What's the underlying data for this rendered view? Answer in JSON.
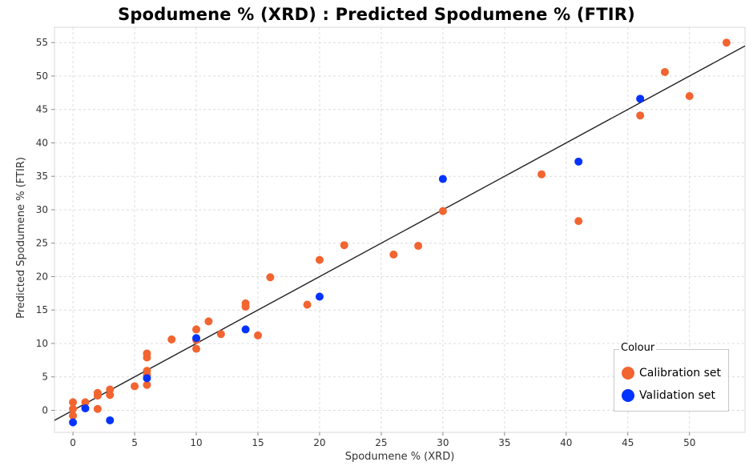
{
  "chart_data": {
    "type": "scatter",
    "title": "Spodumene % (XRD) : Predicted Spodumene % (FTIR)",
    "xlabel": "Spodumene % (XRD)",
    "ylabel": "Predicted Spodumene % (FTIR)",
    "xlim": [
      -1.5,
      54.5
    ],
    "ylim": [
      -3.3,
      57.3
    ],
    "x_ticks": [
      0,
      5,
      10,
      15,
      20,
      25,
      30,
      35,
      40,
      45,
      50
    ],
    "y_ticks": [
      0,
      5,
      10,
      15,
      20,
      25,
      30,
      35,
      40,
      45,
      50,
      55
    ],
    "grid": true,
    "legend_position": "bottom-right",
    "legend_title": "Colour",
    "fit_line": {
      "x": [
        -1.5,
        54.5
      ],
      "y": [
        -1.5,
        54.5
      ]
    },
    "series": [
      {
        "name": "Calibration set",
        "color": "#f26430",
        "points": [
          [
            0,
            1.2
          ],
          [
            0,
            0.2
          ],
          [
            0,
            -0.8
          ],
          [
            1,
            1.2
          ],
          [
            2,
            2.6
          ],
          [
            2,
            2.2
          ],
          [
            2,
            0.2
          ],
          [
            3,
            3.1
          ],
          [
            3,
            2.3
          ],
          [
            5,
            3.6
          ],
          [
            6,
            8.5
          ],
          [
            6,
            7.9
          ],
          [
            6,
            5.9
          ],
          [
            6,
            5.3
          ],
          [
            6,
            3.8
          ],
          [
            8,
            10.6
          ],
          [
            10,
            12.1
          ],
          [
            10,
            10.5
          ],
          [
            10,
            9.2
          ],
          [
            11,
            13.3
          ],
          [
            12,
            11.4
          ],
          [
            14,
            16.0
          ],
          [
            14,
            15.5
          ],
          [
            15,
            11.2
          ],
          [
            16,
            19.9
          ],
          [
            19,
            15.8
          ],
          [
            20,
            22.5
          ],
          [
            22,
            24.7
          ],
          [
            26,
            23.3
          ],
          [
            28,
            24.6
          ],
          [
            30,
            29.8
          ],
          [
            38,
            35.3
          ],
          [
            41,
            28.3
          ],
          [
            46,
            44.1
          ],
          [
            48,
            50.6
          ],
          [
            50,
            47.0
          ],
          [
            53,
            55.0
          ]
        ]
      },
      {
        "name": "Validation set",
        "color": "#0033ff",
        "points": [
          [
            0,
            -1.8
          ],
          [
            1,
            0.3
          ],
          [
            3,
            -1.5
          ],
          [
            6,
            4.8
          ],
          [
            10,
            10.8
          ],
          [
            14,
            12.1
          ],
          [
            20,
            17.0
          ],
          [
            30,
            34.6
          ],
          [
            41,
            37.2
          ],
          [
            46,
            46.6
          ]
        ]
      }
    ]
  }
}
